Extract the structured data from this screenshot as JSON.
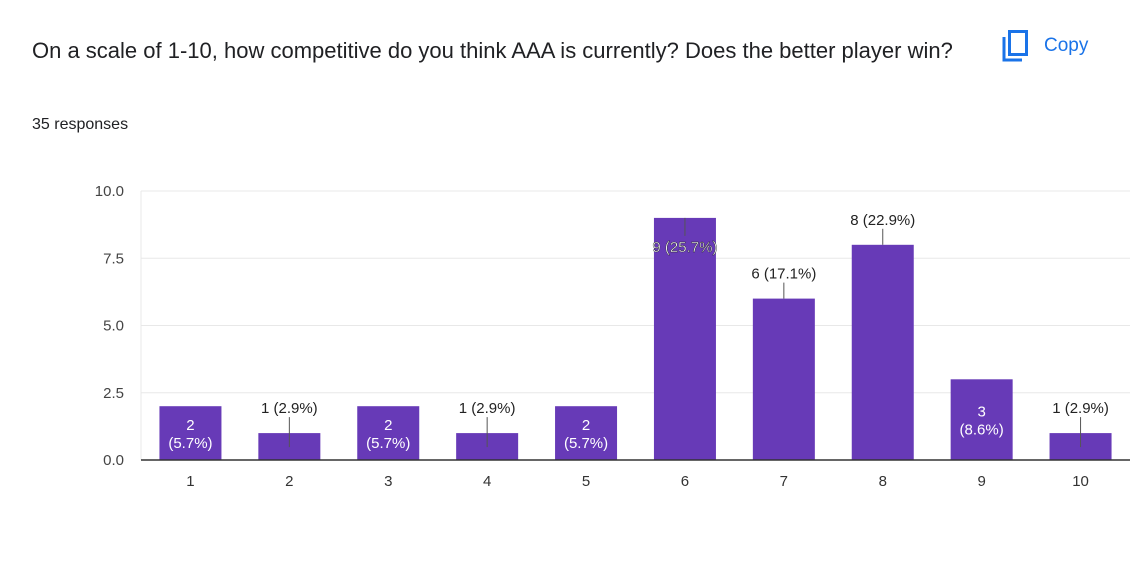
{
  "question": {
    "title": "On a scale of 1-10, how competitive do you think AAA is currently? Does the better player win?",
    "responses": "35 responses"
  },
  "copy": {
    "label": "Copy",
    "icon": "copy-icon"
  },
  "colors": {
    "bar": "#673ab7",
    "accent": "#1a73e8",
    "grid": "#e8e8e8",
    "text": "#202124"
  },
  "chart_data": {
    "type": "bar",
    "categories": [
      "1",
      "2",
      "3",
      "4",
      "5",
      "6",
      "7",
      "8",
      "9",
      "10"
    ],
    "values": [
      2,
      1,
      2,
      1,
      2,
      9,
      6,
      8,
      3,
      1
    ],
    "data_labels": [
      "2 (5.7%)",
      "1 (2.9%)",
      "2 (5.7%)",
      "1 (2.9%)",
      "2 (5.7%)",
      "9 (25.7%)",
      "6 (17.1%)",
      "8 (22.9%)",
      "3 (8.6%)",
      "1 (2.9%)"
    ],
    "yticks": [
      "0.0",
      "2.5",
      "5.0",
      "7.5",
      "10.0"
    ],
    "ylim": [
      0,
      10
    ],
    "grid": true,
    "title": "",
    "xlabel": "",
    "ylabel": ""
  }
}
